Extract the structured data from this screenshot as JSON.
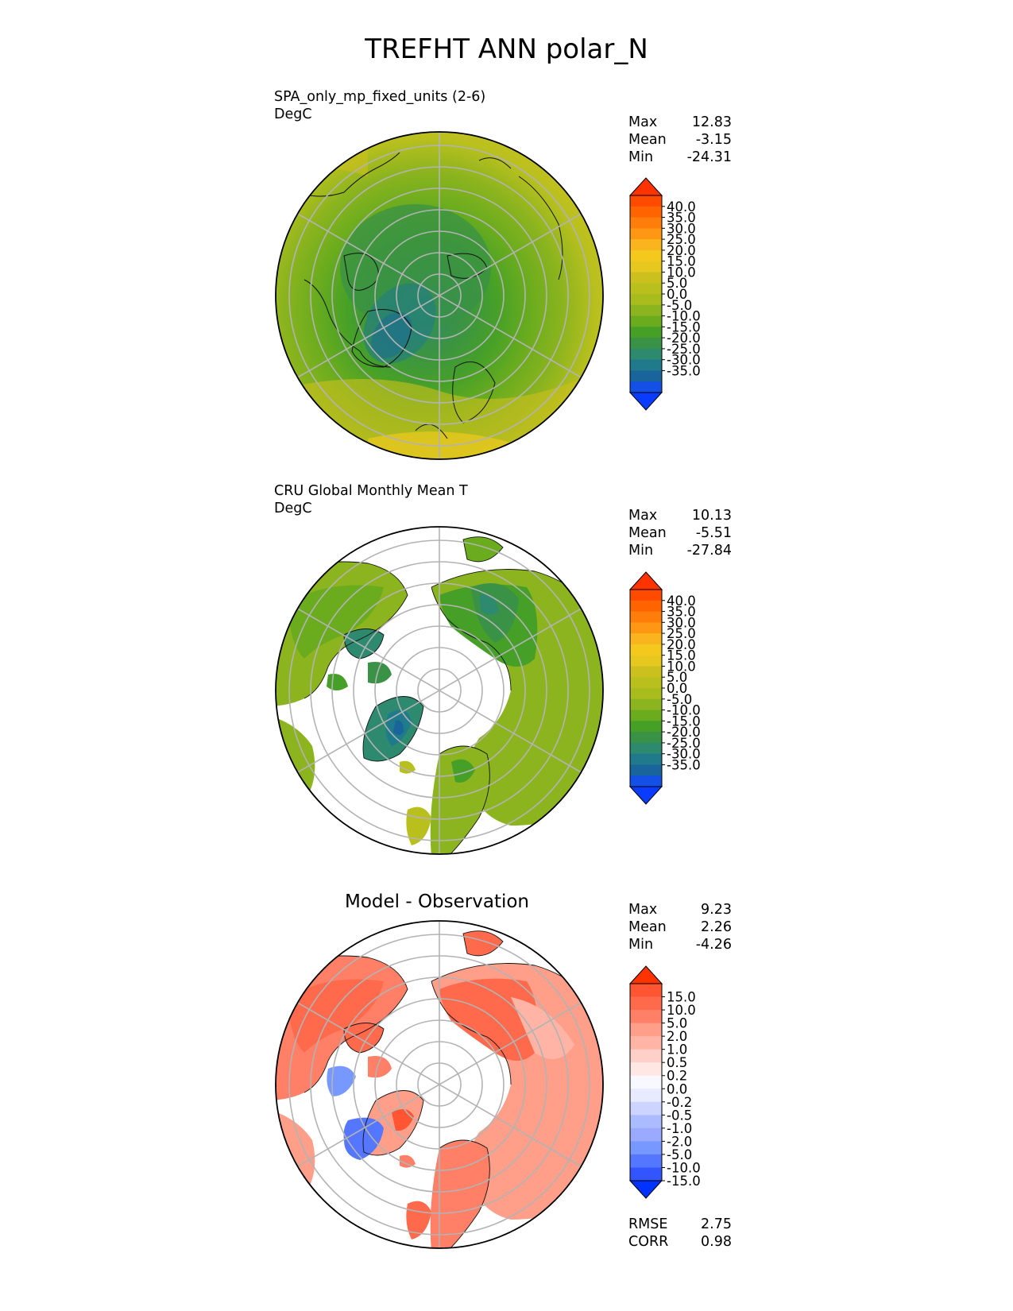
{
  "title": "TREFHT ANN polar_N",
  "colors": {
    "abs": [
      "#0a3cff",
      "#1450e6",
      "#19649b",
      "#1f7a8c",
      "#2e8a6f",
      "#3a9246",
      "#46a028",
      "#6aac1e",
      "#8cb41e",
      "#a8bc1e",
      "#b9c01e",
      "#ccc01e",
      "#e6c81e",
      "#f5c81e",
      "#fab41e",
      "#ff9614",
      "#ff7d0a",
      "#ff6400",
      "#ff4b00",
      "#ff3200"
    ],
    "diff": [
      "#0033ff",
      "#3355ff",
      "#5577ff",
      "#7799ff",
      "#99aaff",
      "#aabbff",
      "#ccd4ff",
      "#e8ebff",
      "#f8f8ff",
      "#ffe8e4",
      "#ffd0c8",
      "#ffb4a6",
      "#ff9f8a",
      "#ff8066",
      "#ff6a4d",
      "#ff5533",
      "#ff3300"
    ]
  },
  "panels": [
    {
      "id": "test",
      "title": "SPA_only_mp_fixed_units (2-6)",
      "units": "DegC",
      "stats": [
        {
          "label": "Max",
          "value": "12.83"
        },
        {
          "label": "Mean",
          "value": "-3.15"
        },
        {
          "label": "Min",
          "value": "-24.31"
        }
      ],
      "colorbar_ticks": [
        "40.0",
        "35.0",
        "30.0",
        "25.0",
        "20.0",
        "15.0",
        "10.0",
        "5.0",
        "0.0",
        "-5.0",
        "-10.0",
        "-15.0",
        "-20.0",
        "-25.0",
        "-30.0",
        "-35.0"
      ]
    },
    {
      "id": "reference",
      "title": "CRU Global Monthly Mean T",
      "units": "DegC",
      "stats": [
        {
          "label": "Max",
          "value": "10.13"
        },
        {
          "label": "Mean",
          "value": "-5.51"
        },
        {
          "label": "Min",
          "value": "-27.84"
        }
      ],
      "colorbar_ticks": [
        "40.0",
        "35.0",
        "30.0",
        "25.0",
        "20.0",
        "15.0",
        "10.0",
        "5.0",
        "0.0",
        "-5.0",
        "-10.0",
        "-15.0",
        "-20.0",
        "-25.0",
        "-30.0",
        "-35.0"
      ]
    },
    {
      "id": "diff",
      "title": "Model - Observation",
      "units": "",
      "stats": [
        {
          "label": "Max",
          "value": "9.23"
        },
        {
          "label": "Mean",
          "value": "2.26"
        },
        {
          "label": "Min",
          "value": "-4.26"
        }
      ],
      "extra_stats": [
        {
          "label": "RMSE",
          "value": "2.75"
        },
        {
          "label": "CORR",
          "value": "0.98"
        }
      ],
      "colorbar_ticks": [
        "15.0",
        "10.0",
        "5.0",
        "2.0",
        "1.0",
        "0.5",
        "0.2",
        "0.0",
        "-0.2",
        "-0.5",
        "-1.0",
        "-2.0",
        "-5.0",
        "-10.0",
        "-15.0"
      ]
    }
  ],
  "chart_data": [
    {
      "type": "heatmap",
      "projection": "north polar stereographic",
      "title": "SPA_only_mp_fixed_units (2-6)",
      "units": "DegC",
      "max": 12.83,
      "mean": -3.15,
      "min": -24.31,
      "levels": [
        -35,
        -30,
        -25,
        -20,
        -15,
        -10,
        -5,
        0,
        5,
        10,
        15,
        20,
        25,
        30,
        35,
        40
      ]
    },
    {
      "type": "heatmap",
      "projection": "north polar stereographic",
      "title": "CRU Global Monthly Mean T",
      "units": "DegC",
      "max": 10.13,
      "mean": -5.51,
      "min": -27.84,
      "levels": [
        -35,
        -30,
        -25,
        -20,
        -15,
        -10,
        -5,
        0,
        5,
        10,
        15,
        20,
        25,
        30,
        35,
        40
      ]
    },
    {
      "type": "heatmap",
      "projection": "north polar stereographic",
      "title": "Model - Observation",
      "max": 9.23,
      "mean": 2.26,
      "min": -4.26,
      "rmse": 2.75,
      "corr": 0.98,
      "levels": [
        -15,
        -10,
        -5,
        -2,
        -1,
        -0.5,
        -0.2,
        0,
        0.2,
        0.5,
        1,
        2,
        5,
        10,
        15
      ]
    }
  ]
}
